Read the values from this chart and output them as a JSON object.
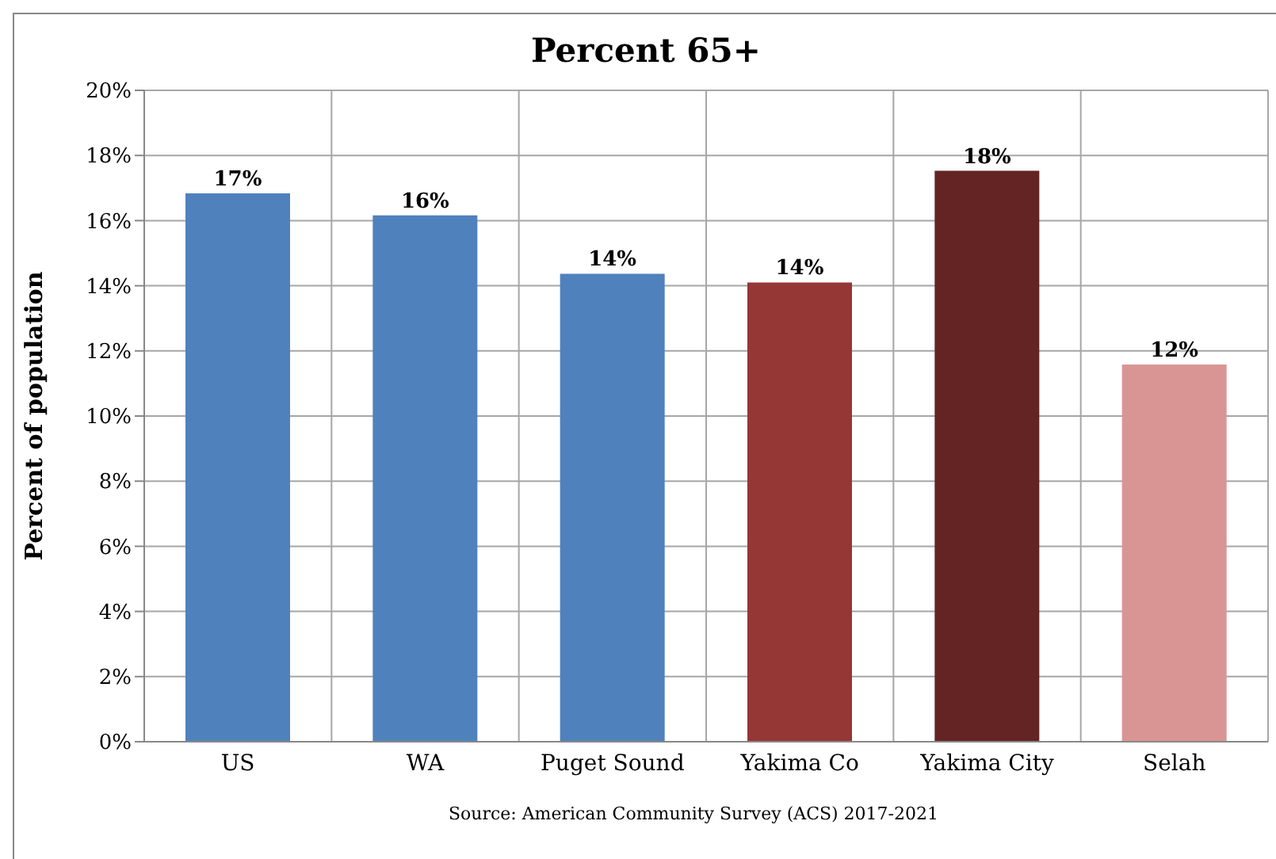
{
  "chart_data": {
    "type": "bar",
    "title": "Percent 65+",
    "ylabel": "Percent of population",
    "categories": [
      "US",
      "WA",
      "Puget Sound",
      "Yakima Co",
      "Yakima City",
      "Selah"
    ],
    "values": [
      16.84,
      16.16,
      14.37,
      14.1,
      17.53,
      11.58
    ],
    "colors": [
      "#4f81bd",
      "#4f81bd",
      "#4f81bd",
      "#953735",
      "#632423",
      "#d99594"
    ],
    "value_labels": [
      "17%",
      "16%",
      "14%",
      "14%",
      "18%",
      "12%"
    ],
    "ylim": [
      0,
      20
    ],
    "yticks": [
      {
        "value": 0,
        "label": "0%"
      },
      {
        "value": 2,
        "label": "2%"
      },
      {
        "value": 4,
        "label": "4%"
      },
      {
        "value": 6,
        "label": "6%"
      },
      {
        "value": 8,
        "label": "8%"
      },
      {
        "value": 10,
        "label": "10%"
      },
      {
        "value": 12,
        "label": "12%"
      },
      {
        "value": 14,
        "label": "14%"
      },
      {
        "value": 16,
        "label": "16%"
      },
      {
        "value": 18,
        "label": "18%"
      },
      {
        "value": 20,
        "label": "20%"
      }
    ],
    "grid": true,
    "annotations": [
      "Source: American Community Survey (ACS) 2017-2021"
    ]
  }
}
